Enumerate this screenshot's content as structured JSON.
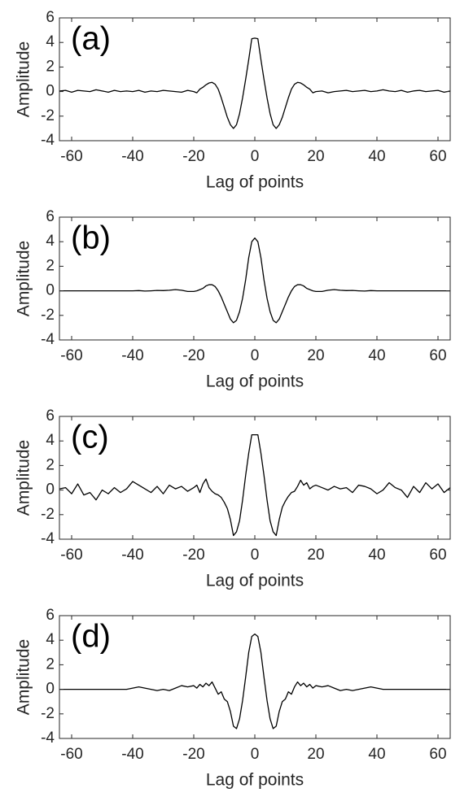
{
  "chart_data": [
    {
      "type": "line",
      "annotation": "(a)",
      "xlabel": "Lag of points",
      "ylabel": "Amplitude",
      "color": "#000000",
      "xlim": [
        -64,
        64
      ],
      "ylim": [
        -4,
        6
      ],
      "xticks": [
        -60,
        -40,
        -20,
        0,
        20,
        40,
        60
      ],
      "yticks": [
        -4,
        -2,
        0,
        2,
        4,
        6
      ],
      "x": [
        -64,
        -62,
        -60,
        -58,
        -56,
        -54,
        -52,
        -50,
        -48,
        -46,
        -44,
        -42,
        -40,
        -38,
        -36,
        -34,
        -32,
        -30,
        -28,
        -26,
        -24,
        -22,
        -20,
        -19,
        -18,
        -17,
        -16,
        -15,
        -14,
        -13,
        -12,
        -11,
        -10,
        -9,
        -8,
        -7,
        -6,
        -5,
        -4,
        -3,
        -2,
        -1,
        0,
        1,
        2,
        3,
        4,
        5,
        6,
        7,
        8,
        9,
        10,
        11,
        12,
        13,
        14,
        15,
        16,
        17,
        18,
        19,
        20,
        22,
        24,
        26,
        28,
        30,
        32,
        34,
        36,
        38,
        40,
        42,
        44,
        46,
        48,
        50,
        52,
        54,
        56,
        58,
        60,
        62,
        64
      ],
      "values": [
        0.05,
        0.1,
        -0.05,
        0.1,
        0.05,
        0.0,
        0.15,
        0.05,
        -0.05,
        0.1,
        0.0,
        0.05,
        0.0,
        0.1,
        -0.05,
        0.05,
        0.0,
        0.1,
        0.05,
        0.0,
        -0.05,
        0.1,
        0.0,
        -0.1,
        0.2,
        0.35,
        0.55,
        0.7,
        0.75,
        0.6,
        0.2,
        -0.5,
        -1.3,
        -2.1,
        -2.7,
        -3.0,
        -2.7,
        -1.8,
        -0.5,
        1.0,
        2.6,
        4.3,
        4.35,
        4.3,
        2.6,
        1.0,
        -0.5,
        -1.8,
        -2.7,
        -3.0,
        -2.7,
        -2.1,
        -1.3,
        -0.5,
        0.2,
        0.6,
        0.75,
        0.7,
        0.55,
        0.35,
        0.2,
        -0.1,
        0.0,
        0.05,
        -0.1,
        0.0,
        0.05,
        0.1,
        0.0,
        0.05,
        0.1,
        0.0,
        0.05,
        0.15,
        0.05,
        0.0,
        0.1,
        -0.05,
        0.05,
        0.1,
        0.0,
        0.05,
        0.1,
        -0.05,
        0.05
      ]
    },
    {
      "type": "line",
      "annotation": "(b)",
      "xlabel": "Lag of points",
      "ylabel": "Amplitude",
      "color": "#000000",
      "xlim": [
        -64,
        64
      ],
      "ylim": [
        -4,
        6
      ],
      "xticks": [
        -60,
        -40,
        -20,
        0,
        20,
        40,
        60
      ],
      "yticks": [
        -4,
        -2,
        0,
        2,
        4,
        6
      ],
      "x": [
        -64,
        -62,
        -60,
        -58,
        -56,
        -54,
        -52,
        -50,
        -48,
        -46,
        -44,
        -42,
        -40,
        -38,
        -36,
        -34,
        -32,
        -30,
        -28,
        -26,
        -24,
        -22,
        -20,
        -19,
        -18,
        -17,
        -16,
        -15,
        -14,
        -13,
        -12,
        -11,
        -10,
        -9,
        -8,
        -7,
        -6,
        -5,
        -4,
        -3,
        -2,
        -1,
        0,
        1,
        2,
        3,
        4,
        5,
        6,
        7,
        8,
        9,
        10,
        11,
        12,
        13,
        14,
        15,
        16,
        17,
        18,
        19,
        20,
        22,
        24,
        26,
        28,
        30,
        32,
        34,
        36,
        38,
        40,
        42,
        44,
        46,
        48,
        50,
        52,
        54,
        56,
        58,
        60,
        62,
        64
      ],
      "values": [
        0,
        0,
        0,
        0,
        0,
        0,
        0,
        0,
        0,
        0,
        0,
        0,
        0.0,
        0.02,
        -0.02,
        0.0,
        0.03,
        0.02,
        0.05,
        0.1,
        0.05,
        -0.05,
        -0.05,
        0.0,
        0.1,
        0.2,
        0.4,
        0.5,
        0.5,
        0.35,
        0.0,
        -0.5,
        -1.1,
        -1.7,
        -2.3,
        -2.6,
        -2.4,
        -1.7,
        -0.6,
        0.9,
        2.7,
        4.0,
        4.3,
        4.0,
        2.7,
        0.9,
        -0.6,
        -1.7,
        -2.4,
        -2.6,
        -2.3,
        -1.7,
        -1.1,
        -0.5,
        0.0,
        0.35,
        0.5,
        0.5,
        0.4,
        0.2,
        0.1,
        0.0,
        -0.05,
        -0.05,
        0.05,
        0.1,
        0.05,
        0.02,
        0.03,
        0.0,
        -0.02,
        0.02,
        0.0,
        0,
        0,
        0,
        0,
        0,
        0,
        0,
        0,
        0,
        0,
        0,
        0
      ]
    },
    {
      "type": "line",
      "annotation": "(c)",
      "xlabel": "Lag of points",
      "ylabel": "Amplitude",
      "color": "#000000",
      "xlim": [
        -64,
        64
      ],
      "ylim": [
        -4,
        6
      ],
      "xticks": [
        -60,
        -40,
        -20,
        0,
        20,
        40,
        60
      ],
      "yticks": [
        -4,
        -2,
        0,
        2,
        4,
        6
      ],
      "x": [
        -64,
        -62,
        -60,
        -58,
        -56,
        -54,
        -52,
        -50,
        -48,
        -46,
        -44,
        -42,
        -40,
        -38,
        -36,
        -34,
        -32,
        -30,
        -28,
        -26,
        -24,
        -22,
        -20,
        -19,
        -18,
        -17,
        -16,
        -15,
        -14,
        -13,
        -12,
        -11,
        -10,
        -9,
        -8,
        -7,
        -6,
        -5,
        -4,
        -3,
        -2,
        -1,
        0,
        1,
        2,
        3,
        4,
        5,
        6,
        7,
        8,
        9,
        10,
        11,
        12,
        13,
        14,
        15,
        16,
        17,
        18,
        19,
        20,
        22,
        24,
        26,
        28,
        30,
        32,
        34,
        36,
        38,
        40,
        42,
        44,
        46,
        48,
        50,
        52,
        54,
        56,
        58,
        60,
        62,
        64
      ],
      "values": [
        0.1,
        0.2,
        -0.3,
        0.5,
        -0.4,
        -0.2,
        -0.8,
        0.0,
        -0.3,
        0.2,
        -0.2,
        0.1,
        0.7,
        0.4,
        0.1,
        -0.2,
        0.3,
        -0.3,
        0.4,
        0.1,
        0.3,
        -0.1,
        0.2,
        0.4,
        -0.2,
        0.5,
        0.9,
        0.2,
        -0.1,
        -0.3,
        -0.4,
        -0.6,
        -1.0,
        -1.5,
        -2.4,
        -3.7,
        -3.4,
        -2.5,
        -0.8,
        1.2,
        3.0,
        4.5,
        4.5,
        4.5,
        3.0,
        1.2,
        -0.8,
        -2.5,
        -3.4,
        -3.7,
        -2.4,
        -1.4,
        -0.9,
        -0.5,
        -0.2,
        -0.1,
        0.3,
        0.8,
        0.4,
        0.6,
        0.1,
        0.3,
        0.4,
        0.2,
        0.0,
        0.3,
        0.1,
        0.2,
        -0.2,
        0.4,
        0.3,
        0.1,
        -0.3,
        0.0,
        0.6,
        0.2,
        0.0,
        -0.6,
        0.3,
        -0.2,
        0.6,
        0.1,
        0.5,
        -0.2,
        0.2
      ]
    },
    {
      "type": "line",
      "annotation": "(d)",
      "xlabel": "Lag of points",
      "ylabel": "Amplitude",
      "color": "#000000",
      "xlim": [
        -64,
        64
      ],
      "ylim": [
        -4,
        6
      ],
      "xticks": [
        -60,
        -40,
        -20,
        0,
        20,
        40,
        60
      ],
      "yticks": [
        -4,
        -2,
        0,
        2,
        4,
        6
      ],
      "x": [
        -64,
        -62,
        -60,
        -58,
        -56,
        -54,
        -52,
        -50,
        -48,
        -46,
        -44,
        -42,
        -40,
        -38,
        -36,
        -34,
        -32,
        -30,
        -28,
        -26,
        -24,
        -22,
        -20,
        -19,
        -18,
        -17,
        -16,
        -15,
        -14,
        -13,
        -12,
        -11,
        -10,
        -9,
        -8,
        -7,
        -6,
        -5,
        -4,
        -3,
        -2,
        -1,
        0,
        1,
        2,
        3,
        4,
        5,
        6,
        7,
        8,
        9,
        10,
        11,
        12,
        13,
        14,
        15,
        16,
        17,
        18,
        19,
        20,
        22,
        24,
        26,
        28,
        30,
        32,
        34,
        36,
        38,
        40,
        42,
        44,
        46,
        48,
        50,
        52,
        54,
        56,
        58,
        60,
        62,
        64
      ],
      "values": [
        0,
        0,
        0,
        0,
        0,
        0,
        0,
        0,
        0,
        0,
        0,
        0,
        0.1,
        0.2,
        0.1,
        0.0,
        -0.1,
        0.0,
        -0.1,
        0.1,
        0.3,
        0.2,
        0.3,
        0.1,
        0.4,
        0.2,
        0.5,
        0.3,
        0.6,
        0.1,
        -0.4,
        -0.2,
        -0.8,
        -1.0,
        -1.8,
        -3.0,
        -3.2,
        -2.4,
        -0.9,
        1.0,
        3.0,
        4.3,
        4.5,
        4.3,
        3.0,
        1.0,
        -0.9,
        -2.4,
        -3.2,
        -3.0,
        -1.8,
        -1.0,
        -0.8,
        -0.2,
        -0.4,
        0.2,
        0.6,
        0.3,
        0.5,
        0.2,
        0.4,
        0.1,
        0.3,
        0.2,
        0.3,
        0.1,
        -0.1,
        0.0,
        -0.1,
        0.0,
        0.1,
        0.2,
        0.1,
        0,
        0,
        0,
        0,
        0,
        0,
        0,
        0,
        0,
        0,
        0,
        0
      ]
    }
  ]
}
